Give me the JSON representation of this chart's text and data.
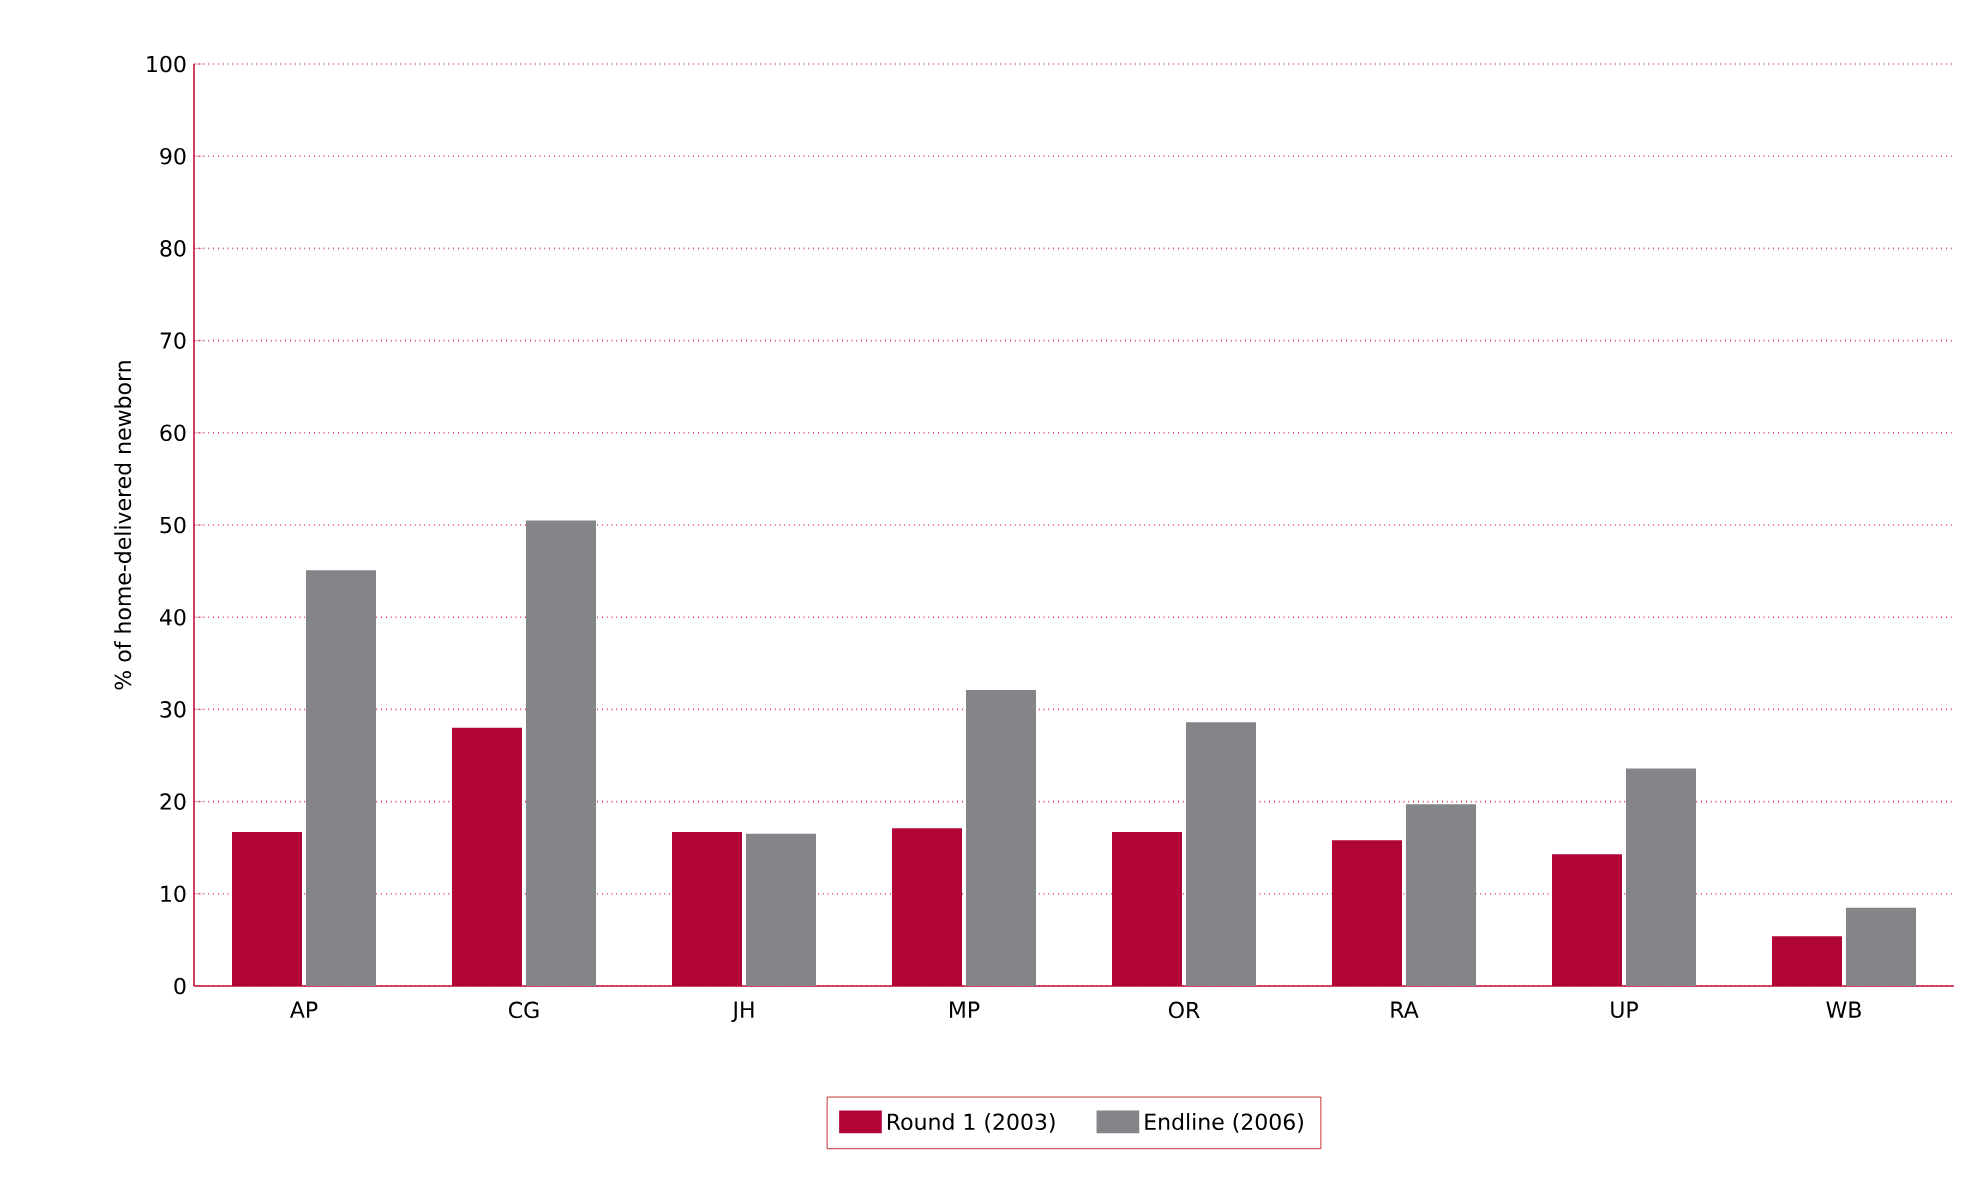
{
  "chart_data": {
    "type": "bar",
    "ylabel": "% of home-delivered newborn",
    "categories": [
      "AP",
      "CG",
      "JH",
      "MP",
      "OR",
      "RA",
      "UP",
      "WB"
    ],
    "series": [
      {
        "name": "Round 1 (2003)",
        "color": "#b10538",
        "values": [
          16.7,
          28.0,
          16.7,
          17.1,
          16.7,
          15.8,
          14.3,
          5.4
        ]
      },
      {
        "name": "Endline (2006)",
        "color": "#848589",
        "values": [
          45.1,
          50.5,
          16.5,
          32.1,
          28.6,
          19.7,
          23.6,
          8.5
        ]
      }
    ],
    "ylim": [
      0,
      100
    ],
    "yticks": [
      0,
      10,
      20,
      30,
      40,
      50,
      60,
      70,
      80,
      90,
      100
    ],
    "grid": "y",
    "legend": "bottom"
  }
}
